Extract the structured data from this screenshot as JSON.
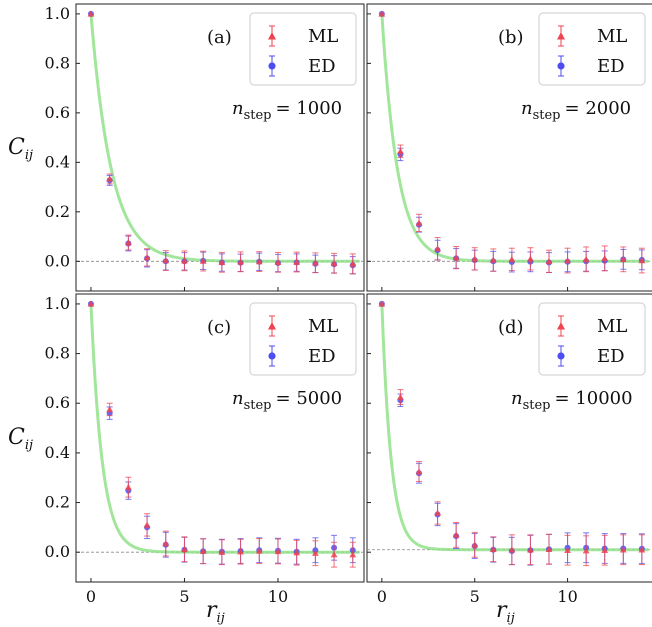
{
  "chart_data": [
    {
      "type": "scatter",
      "panel": "(a)",
      "annotation": {
        "symbol": "n",
        "subscript": "step",
        "value": "= 1000"
      },
      "legend": [
        "ML",
        "ED"
      ],
      "legend_placement": "top-right",
      "ylabel": {
        "symbol": "C",
        "subscript": "ij"
      },
      "xlabel": "",
      "x": [
        0,
        1,
        2,
        3,
        4,
        5,
        6,
        7,
        8,
        9,
        10,
        11,
        12,
        13,
        14
      ],
      "series": [
        {
          "name": "ML",
          "marker": "triangle",
          "color": "#f0434f",
          "values": [
            1.0,
            0.333,
            0.076,
            0.016,
            0.003,
            0.002,
            0.001,
            -0.004,
            -0.002,
            -0.001,
            -0.004,
            -0.003,
            -0.006,
            -0.008,
            -0.01
          ],
          "errors": [
            0.0,
            0.02,
            0.03,
            0.035,
            0.04,
            0.04,
            0.04,
            0.04,
            0.04,
            0.04,
            0.04,
            0.04,
            0.04,
            0.04,
            0.04
          ]
        },
        {
          "name": "ED",
          "marker": "circle",
          "color": "#4d4df0",
          "values": [
            1.0,
            0.327,
            0.072,
            0.012,
            0.0,
            0.0,
            0.002,
            -0.005,
            -0.006,
            -0.002,
            -0.007,
            -0.005,
            -0.01,
            -0.012,
            -0.016
          ],
          "errors": [
            0.0,
            0.02,
            0.03,
            0.035,
            0.035,
            0.035,
            0.035,
            0.035,
            0.035,
            0.035,
            0.035,
            0.035,
            0.035,
            0.035,
            0.035
          ]
        }
      ],
      "fit": {
        "name": "fit",
        "color": "#90e28a",
        "decay": 1.1
      },
      "xlim": [
        -0.8,
        14.6
      ],
      "ylim": [
        -0.12,
        1.04
      ],
      "xticks": [
        0,
        5,
        10
      ],
      "yticks": [
        0.0,
        0.2,
        0.4,
        0.6,
        0.8,
        1.0
      ],
      "reference_line": 0.0,
      "grid": false
    },
    {
      "type": "scatter",
      "panel": "(b)",
      "annotation": {
        "symbol": "n",
        "subscript": "step",
        "value": "= 2000"
      },
      "legend": [
        "ML",
        "ED"
      ],
      "legend_placement": "top-right",
      "ylabel": {
        "symbol": "",
        "subscript": ""
      },
      "xlabel": "",
      "x": [
        0,
        1,
        2,
        3,
        4,
        5,
        6,
        7,
        8,
        9,
        10,
        11,
        12,
        13,
        14
      ],
      "series": [
        {
          "name": "ML",
          "marker": "triangle",
          "color": "#f0434f",
          "values": [
            1.0,
            0.445,
            0.155,
            0.051,
            0.015,
            0.01,
            0.005,
            0.008,
            0.01,
            0.0,
            0.003,
            0.008,
            0.012,
            0.008,
            0.003
          ],
          "errors": [
            0.0,
            0.025,
            0.035,
            0.045,
            0.045,
            0.045,
            0.045,
            0.045,
            0.045,
            0.045,
            0.05,
            0.05,
            0.05,
            0.05,
            0.05
          ]
        },
        {
          "name": "ED",
          "marker": "circle",
          "color": "#4d4df0",
          "values": [
            1.0,
            0.432,
            0.148,
            0.045,
            0.012,
            0.005,
            0.0,
            -0.003,
            -0.002,
            -0.005,
            -0.002,
            0.0,
            0.002,
            0.008,
            0.006
          ],
          "errors": [
            0.0,
            0.025,
            0.03,
            0.04,
            0.04,
            0.04,
            0.04,
            0.04,
            0.04,
            0.04,
            0.04,
            0.04,
            0.04,
            0.04,
            0.04
          ]
        }
      ],
      "fit": {
        "name": "fit",
        "color": "#90e28a",
        "decay": 0.85
      },
      "xlim": [
        -0.8,
        14.6
      ],
      "ylim": [
        -0.12,
        1.04
      ],
      "xticks": [
        0,
        5,
        10
      ],
      "yticks": [
        0.0,
        0.2,
        0.4,
        0.6,
        0.8,
        1.0
      ],
      "reference_line": 0.0,
      "grid": false
    },
    {
      "type": "scatter",
      "panel": "(c)",
      "annotation": {
        "symbol": "n",
        "subscript": "step",
        "value": "= 5000"
      },
      "legend": [
        "ML",
        "ED"
      ],
      "legend_placement": "top-right",
      "ylabel": {
        "symbol": "C",
        "subscript": "ij"
      },
      "xlabel": {
        "symbol": "r",
        "subscript": "ij"
      },
      "x": [
        0,
        1,
        2,
        3,
        4,
        5,
        6,
        7,
        8,
        9,
        10,
        11,
        12,
        13,
        14
      ],
      "series": [
        {
          "name": "ML",
          "marker": "triangle",
          "color": "#f0434f",
          "values": [
            1.0,
            0.575,
            0.262,
            0.11,
            0.035,
            0.012,
            0.004,
            0.0,
            0.002,
            0.005,
            0.003,
            -0.002,
            -0.004,
            -0.01,
            -0.01
          ],
          "errors": [
            0.0,
            0.025,
            0.04,
            0.045,
            0.05,
            0.05,
            0.05,
            0.05,
            0.05,
            0.05,
            0.05,
            0.05,
            0.05,
            0.05,
            0.05
          ]
        },
        {
          "name": "ED",
          "marker": "circle",
          "color": "#4d4df0",
          "values": [
            1.0,
            0.56,
            0.248,
            0.1,
            0.03,
            0.01,
            0.004,
            0.002,
            0.005,
            0.008,
            0.006,
            0.002,
            0.008,
            0.018,
            0.008
          ],
          "errors": [
            0.0,
            0.025,
            0.035,
            0.045,
            0.05,
            0.05,
            0.05,
            0.05,
            0.05,
            0.05,
            0.05,
            0.05,
            0.05,
            0.05,
            0.05
          ]
        }
      ],
      "fit": {
        "name": "fit",
        "color": "#90e28a",
        "decay": 0.6
      },
      "xlim": [
        -0.8,
        14.6
      ],
      "ylim": [
        -0.12,
        1.04
      ],
      "xticks": [
        0,
        5,
        10
      ],
      "yticks": [
        0.0,
        0.2,
        0.4,
        0.6,
        0.8,
        1.0
      ],
      "xticklabels": [
        "0",
        "5",
        "10"
      ],
      "reference_line": 0.0,
      "grid": false
    },
    {
      "type": "scatter",
      "panel": "(d)",
      "annotation": {
        "symbol": "n",
        "subscript": "step",
        "value": "= 10000"
      },
      "legend": [
        "ML",
        "ED"
      ],
      "legend_placement": "top-right",
      "ylabel": {
        "symbol": "",
        "subscript": ""
      },
      "xlabel": {
        "symbol": "r",
        "subscript": "ij"
      },
      "x": [
        0,
        1,
        2,
        3,
        4,
        5,
        6,
        7,
        8,
        9,
        10,
        11,
        12,
        13,
        14
      ],
      "series": [
        {
          "name": "ML",
          "marker": "triangle",
          "color": "#f0434f",
          "values": [
            1.0,
            0.625,
            0.325,
            0.158,
            0.07,
            0.03,
            0.012,
            0.01,
            0.01,
            0.012,
            0.008,
            0.006,
            0.008,
            0.01,
            0.01
          ],
          "errors": [
            0.0,
            0.03,
            0.04,
            0.045,
            0.05,
            0.05,
            0.05,
            0.06,
            0.06,
            0.06,
            0.06,
            0.06,
            0.06,
            0.06,
            0.06
          ]
        },
        {
          "name": "ED",
          "marker": "circle",
          "color": "#4d4df0",
          "values": [
            1.0,
            0.612,
            0.318,
            0.152,
            0.065,
            0.025,
            0.01,
            0.005,
            0.008,
            0.012,
            0.018,
            0.018,
            0.015,
            0.015,
            0.014
          ],
          "errors": [
            0.0,
            0.025,
            0.04,
            0.045,
            0.05,
            0.05,
            0.05,
            0.055,
            0.06,
            0.06,
            0.06,
            0.06,
            0.06,
            0.06,
            0.06
          ]
        }
      ],
      "fit": {
        "name": "fit",
        "color": "#90e28a",
        "decay": 0.5
      },
      "xlim": [
        -0.8,
        14.6
      ],
      "ylim": [
        -0.12,
        1.04
      ],
      "xticks": [
        0,
        5,
        10
      ],
      "yticks": [
        0.0,
        0.2,
        0.4,
        0.6,
        0.8,
        1.0
      ],
      "xticklabels": [
        "0",
        "5",
        "10"
      ],
      "reference_line": 0.01,
      "grid": false
    }
  ]
}
